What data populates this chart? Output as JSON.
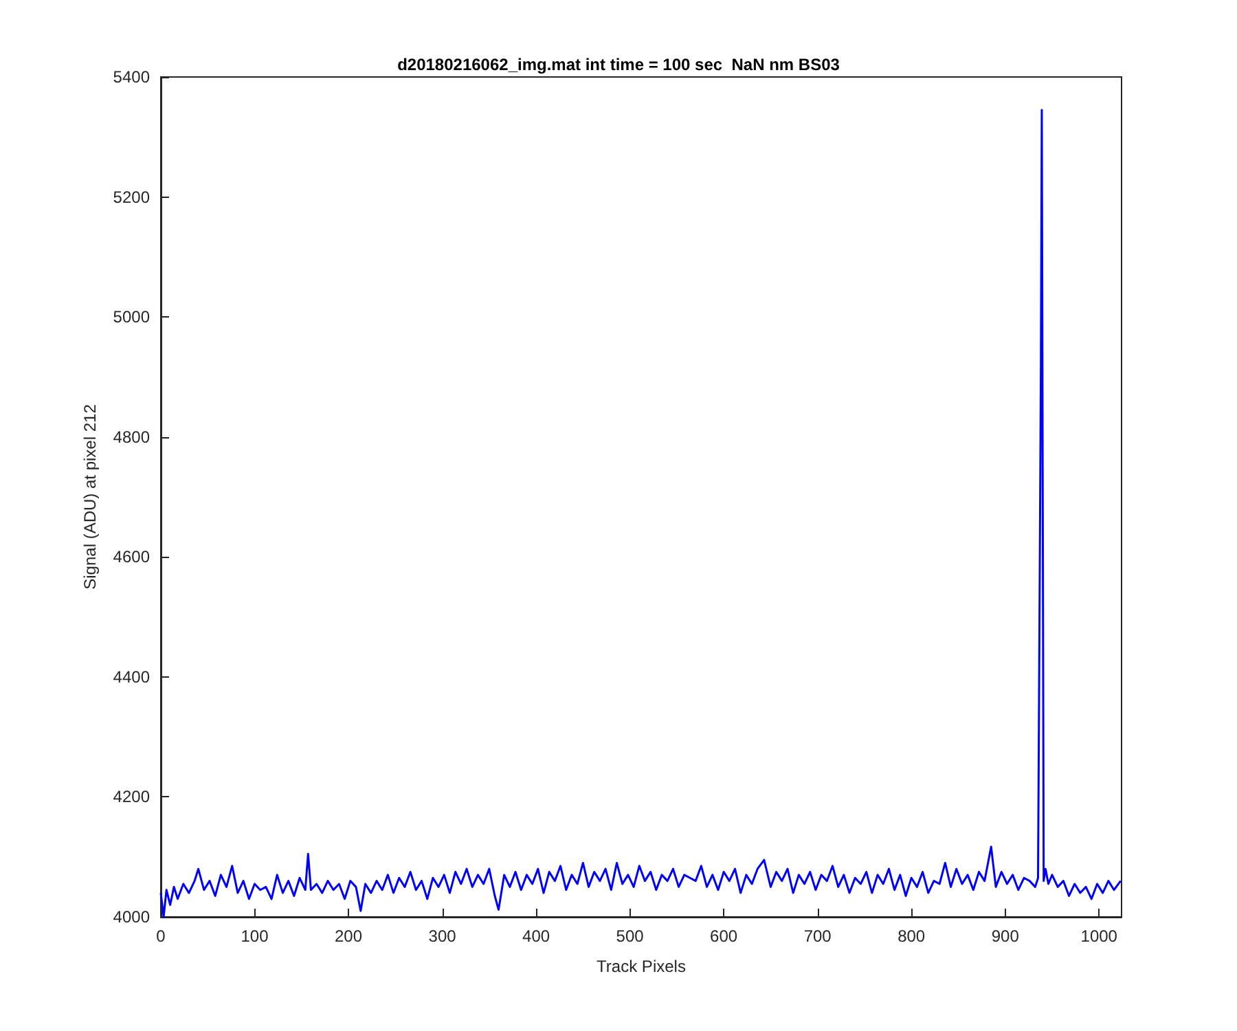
{
  "chart_data": {
    "type": "line",
    "title": "d20180216062_img.mat int time = 100 sec  NaN nm BS03",
    "xlabel": "Track Pixels",
    "ylabel": "Signal (ADU) at pixel 212",
    "x": [
      0,
      3,
      6,
      10,
      14,
      18,
      24,
      30,
      36,
      40,
      46,
      52,
      58,
      64,
      70,
      76,
      82,
      88,
      94,
      100,
      106,
      112,
      118,
      124,
      130,
      136,
      142,
      148,
      154,
      157,
      160,
      166,
      172,
      178,
      184,
      190,
      196,
      202,
      208,
      213,
      218,
      224,
      230,
      236,
      242,
      248,
      254,
      260,
      266,
      272,
      278,
      284,
      290,
      296,
      302,
      308,
      314,
      320,
      326,
      332,
      338,
      344,
      350,
      356,
      360,
      366,
      372,
      378,
      384,
      390,
      396,
      402,
      408,
      414,
      420,
      426,
      432,
      438,
      444,
      450,
      456,
      462,
      468,
      474,
      480,
      486,
      492,
      498,
      504,
      510,
      516,
      522,
      528,
      534,
      540,
      546,
      552,
      558,
      564,
      570,
      576,
      582,
      588,
      594,
      600,
      606,
      612,
      618,
      624,
      630,
      636,
      643,
      650,
      656,
      662,
      668,
      674,
      680,
      686,
      692,
      698,
      704,
      710,
      716,
      722,
      728,
      734,
      740,
      746,
      752,
      758,
      764,
      770,
      776,
      782,
      788,
      794,
      800,
      806,
      812,
      818,
      824,
      830,
      836,
      842,
      848,
      854,
      860,
      866,
      872,
      878,
      885,
      890,
      896,
      902,
      908,
      914,
      920,
      926,
      932,
      935,
      938,
      939,
      940,
      941,
      943,
      946,
      950,
      956,
      962,
      968,
      974,
      980,
      986,
      992,
      998,
      1004,
      1010,
      1016,
      1023
    ],
    "series": [
      {
        "color": "#0000ff",
        "values": [
          4040,
          4000,
          4045,
          4020,
          4050,
          4030,
          4055,
          4040,
          4060,
          4080,
          4045,
          4060,
          4035,
          4070,
          4050,
          4085,
          4040,
          4060,
          4030,
          4055,
          4045,
          4050,
          4030,
          4070,
          4040,
          4060,
          4035,
          4065,
          4045,
          4105,
          4045,
          4055,
          4040,
          4060,
          4045,
          4055,
          4030,
          4060,
          4050,
          4010,
          4055,
          4040,
          4060,
          4045,
          4070,
          4040,
          4065,
          4050,
          4075,
          4045,
          4060,
          4030,
          4065,
          4050,
          4070,
          4040,
          4075,
          4055,
          4080,
          4050,
          4070,
          4055,
          4080,
          4035,
          4012,
          4070,
          4050,
          4075,
          4045,
          4070,
          4055,
          4080,
          4040,
          4075,
          4060,
          4085,
          4045,
          4070,
          4055,
          4090,
          4050,
          4075,
          4060,
          4080,
          4045,
          4090,
          4055,
          4070,
          4050,
          4085,
          4060,
          4075,
          4045,
          4070,
          4060,
          4080,
          4050,
          4070,
          4065,
          4060,
          4085,
          4050,
          4070,
          4045,
          4075,
          4060,
          4080,
          4040,
          4070,
          4055,
          4080,
          4095,
          4050,
          4075,
          4060,
          4080,
          4040,
          4070,
          4055,
          4075,
          4045,
          4070,
          4060,
          4085,
          4050,
          4070,
          4040,
          4065,
          4055,
          4075,
          4040,
          4070,
          4055,
          4080,
          4045,
          4070,
          4035,
          4065,
          4050,
          4075,
          4040,
          4060,
          4055,
          4090,
          4050,
          4080,
          4055,
          4070,
          4045,
          4075,
          4060,
          4117,
          4050,
          4075,
          4055,
          4070,
          4045,
          4065,
          4060,
          4050,
          4065,
          4900,
          5345,
          4700,
          4060,
          4080,
          4055,
          4070,
          4050,
          4060,
          4035,
          4055,
          4040,
          4050,
          4030,
          4055,
          4040,
          4060,
          4045,
          4060
        ]
      }
    ],
    "xlim": [
      0,
      1024
    ],
    "xticks": [
      0,
      100,
      200,
      300,
      400,
      500,
      600,
      700,
      800,
      900,
      1000
    ],
    "ylim": [
      4000,
      5400
    ],
    "yticks": [
      4000,
      4200,
      4400,
      4600,
      4800,
      5000,
      5200,
      5400
    ],
    "grid": false,
    "marker": "none",
    "line_style": "solid"
  }
}
